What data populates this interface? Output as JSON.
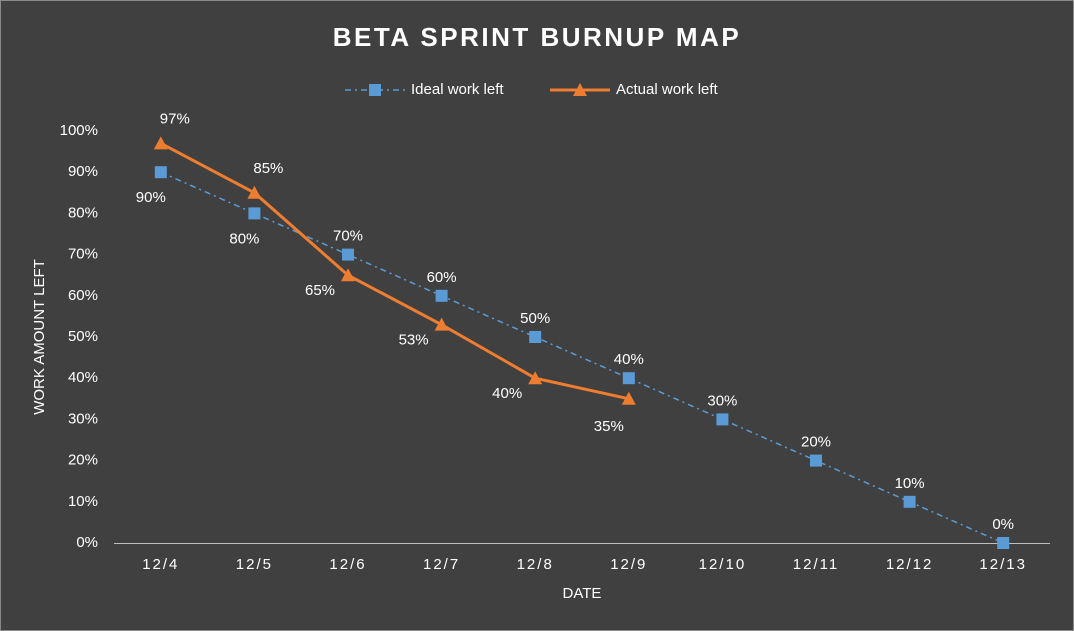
{
  "chart_data": {
    "type": "line",
    "title": "BETA SPRINT BURNUP MAP",
    "xlabel": "DATE",
    "ylabel": "WORK AMOUNT LEFT",
    "categories": [
      "12/4",
      "12/5",
      "12/6",
      "12/7",
      "12/8",
      "12/9",
      "12/10",
      "12/11",
      "12/12",
      "12/13"
    ],
    "series": [
      {
        "name": "Ideal work left",
        "color": "#5b9bd5",
        "marker": "square",
        "dash": "dashdot",
        "values": [
          90,
          80,
          70,
          60,
          50,
          40,
          30,
          20,
          10,
          0
        ],
        "value_labels": [
          "90%",
          "80%",
          "70%",
          "60%",
          "50%",
          "40%",
          "30%",
          "20%",
          "10%",
          "0%"
        ]
      },
      {
        "name": "Actual work left",
        "color": "#ed7d31",
        "marker": "triangle",
        "dash": "solid",
        "values": [
          97,
          85,
          65,
          53,
          40,
          35,
          null,
          null,
          null,
          null
        ],
        "value_labels": [
          "97%",
          "85%",
          "65%",
          "53%",
          "40%",
          "35%",
          null,
          null,
          null,
          null
        ]
      }
    ],
    "ylim": [
      0,
      100
    ],
    "yticks": [
      {
        "value": 0,
        "label": "0%"
      },
      {
        "value": 10,
        "label": "10%"
      },
      {
        "value": 20,
        "label": "20%"
      },
      {
        "value": 30,
        "label": "30%"
      },
      {
        "value": 40,
        "label": "40%"
      },
      {
        "value": 50,
        "label": "50%"
      },
      {
        "value": 60,
        "label": "60%"
      },
      {
        "value": 70,
        "label": "70%"
      },
      {
        "value": 80,
        "label": "80%"
      },
      {
        "value": 90,
        "label": "90%"
      },
      {
        "value": 100,
        "label": "100%"
      }
    ],
    "grid": false,
    "legend": "top"
  }
}
